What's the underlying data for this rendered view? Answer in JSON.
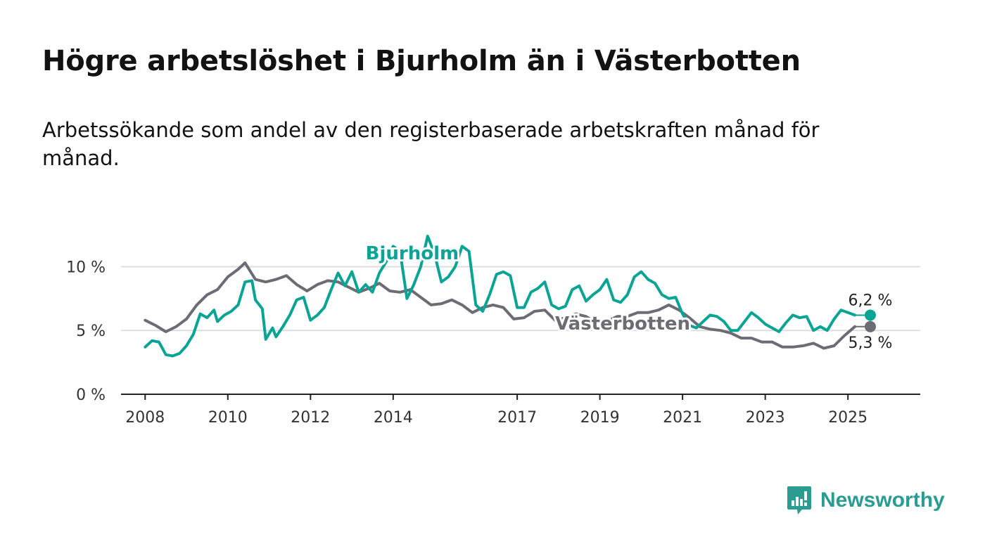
{
  "title": "Högre arbetslöshet i Bjurholm än i Västerbotten",
  "subtitle": "Arbetssökande som andel av den registerbaserade arbetskraften månad för månad.",
  "brand": {
    "name": "Newsworthy",
    "icon": "newsworthy-logo-icon",
    "color": "#2a9c92"
  },
  "colors": {
    "bjurholm": "#0aa495",
    "vasterbotten": "#6d6b73",
    "axis": "#222222",
    "grid": "#dddddd"
  },
  "chart_data": {
    "type": "line",
    "title": "Högre arbetslöshet i Bjurholm än i Västerbotten",
    "subtitle": "Arbetssökande som andel av den registerbaserade arbetskraften månad för månad.",
    "xlabel": "",
    "ylabel": "",
    "ylim": [
      0,
      13
    ],
    "y_ticks": [
      0,
      5,
      10
    ],
    "y_tick_labels": [
      "0 %",
      "5 %",
      "10 %"
    ],
    "xlim": [
      "2007-06",
      "2026-10"
    ],
    "x_ticks": [
      "2008-01",
      "2010-01",
      "2012-01",
      "2014-01",
      "2017-01",
      "2019-01",
      "2021-01",
      "2023-01",
      "2025-01"
    ],
    "x_tick_labels": [
      "2008",
      "2010",
      "2012",
      "2014",
      "2017",
      "2019",
      "2021",
      "2023",
      "2025"
    ],
    "grid": true,
    "series": [
      {
        "name": "Bjurholm",
        "color": "#0aa495",
        "end_label": "6,2 %",
        "points": [
          [
            "2008-01",
            3.7
          ],
          [
            "2008-03",
            4.2
          ],
          [
            "2008-05",
            4.1
          ],
          [
            "2008-07",
            3.1
          ],
          [
            "2008-09",
            3.0
          ],
          [
            "2008-11",
            3.2
          ],
          [
            "2009-01",
            3.8
          ],
          [
            "2009-03",
            4.7
          ],
          [
            "2009-05",
            6.3
          ],
          [
            "2009-07",
            6.0
          ],
          [
            "2009-09",
            6.6
          ],
          [
            "2009-10",
            5.7
          ],
          [
            "2009-12",
            6.2
          ],
          [
            "2010-02",
            6.5
          ],
          [
            "2010-04",
            7.0
          ],
          [
            "2010-06",
            8.8
          ],
          [
            "2010-08",
            8.9
          ],
          [
            "2010-09",
            7.4
          ],
          [
            "2010-11",
            6.7
          ],
          [
            "2010-12",
            4.3
          ],
          [
            "2011-02",
            5.2
          ],
          [
            "2011-03",
            4.5
          ],
          [
            "2011-05",
            5.3
          ],
          [
            "2011-07",
            6.2
          ],
          [
            "2011-09",
            7.4
          ],
          [
            "2011-11",
            7.6
          ],
          [
            "2012-01",
            5.8
          ],
          [
            "2012-03",
            6.2
          ],
          [
            "2012-05",
            6.8
          ],
          [
            "2012-07",
            8.2
          ],
          [
            "2012-09",
            9.5
          ],
          [
            "2012-11",
            8.5
          ],
          [
            "2013-01",
            9.6
          ],
          [
            "2013-03",
            8.0
          ],
          [
            "2013-05",
            8.6
          ],
          [
            "2013-07",
            8.0
          ],
          [
            "2013-09",
            9.5
          ],
          [
            "2013-11",
            10.4
          ],
          [
            "2014-01",
            11.6
          ],
          [
            "2014-03",
            11.2
          ],
          [
            "2014-05",
            7.5
          ],
          [
            "2014-07",
            8.6
          ],
          [
            "2014-09",
            10.0
          ],
          [
            "2014-11",
            12.4
          ],
          [
            "2015-01",
            11.0
          ],
          [
            "2015-03",
            8.8
          ],
          [
            "2015-05",
            9.2
          ],
          [
            "2015-07",
            10.0
          ],
          [
            "2015-09",
            11.6
          ],
          [
            "2015-11",
            11.2
          ],
          [
            "2016-01",
            7.0
          ],
          [
            "2016-03",
            6.5
          ],
          [
            "2016-05",
            7.8
          ],
          [
            "2016-07",
            9.4
          ],
          [
            "2016-09",
            9.6
          ],
          [
            "2016-11",
            9.3
          ],
          [
            "2017-01",
            6.8
          ],
          [
            "2017-03",
            6.8
          ],
          [
            "2017-05",
            8.0
          ],
          [
            "2017-07",
            8.3
          ],
          [
            "2017-09",
            8.8
          ],
          [
            "2017-11",
            7.0
          ],
          [
            "2018-01",
            6.7
          ],
          [
            "2018-03",
            6.9
          ],
          [
            "2018-05",
            8.2
          ],
          [
            "2018-07",
            8.5
          ],
          [
            "2018-09",
            7.3
          ],
          [
            "2018-11",
            7.8
          ],
          [
            "2019-01",
            8.2
          ],
          [
            "2019-03",
            9.0
          ],
          [
            "2019-05",
            7.4
          ],
          [
            "2019-07",
            7.2
          ],
          [
            "2019-09",
            7.8
          ],
          [
            "2019-11",
            9.2
          ],
          [
            "2020-01",
            9.6
          ],
          [
            "2020-03",
            9.0
          ],
          [
            "2020-05",
            8.7
          ],
          [
            "2020-07",
            7.8
          ],
          [
            "2020-09",
            7.5
          ],
          [
            "2020-11",
            7.6
          ],
          [
            "2021-01",
            6.3
          ],
          [
            "2021-03",
            5.4
          ],
          [
            "2021-05",
            5.2
          ],
          [
            "2021-07",
            5.7
          ],
          [
            "2021-09",
            6.2
          ],
          [
            "2021-11",
            6.1
          ],
          [
            "2022-01",
            5.7
          ],
          [
            "2022-03",
            5.0
          ],
          [
            "2022-05",
            5.0
          ],
          [
            "2022-07",
            5.7
          ],
          [
            "2022-09",
            6.4
          ],
          [
            "2022-11",
            6.0
          ],
          [
            "2023-01",
            5.5
          ],
          [
            "2023-03",
            5.2
          ],
          [
            "2023-05",
            4.9
          ],
          [
            "2023-07",
            5.6
          ],
          [
            "2023-09",
            6.2
          ],
          [
            "2023-11",
            6.0
          ],
          [
            "2024-01",
            6.1
          ],
          [
            "2024-03",
            5.0
          ],
          [
            "2024-05",
            5.3
          ],
          [
            "2024-07",
            5.0
          ],
          [
            "2024-09",
            5.9
          ],
          [
            "2024-11",
            6.6
          ],
          [
            "2025-01",
            6.4
          ],
          [
            "2025-03",
            6.2
          ]
        ]
      },
      {
        "name": "Västerbotten",
        "color": "#6d6b73",
        "end_label": "5,3 %",
        "points": [
          [
            "2008-01",
            5.8
          ],
          [
            "2008-04",
            5.4
          ],
          [
            "2008-07",
            4.9
          ],
          [
            "2008-10",
            5.3
          ],
          [
            "2009-01",
            5.9
          ],
          [
            "2009-04",
            7.0
          ],
          [
            "2009-07",
            7.8
          ],
          [
            "2009-10",
            8.2
          ],
          [
            "2010-01",
            9.2
          ],
          [
            "2010-04",
            9.8
          ],
          [
            "2010-06",
            10.3
          ],
          [
            "2010-09",
            9.0
          ],
          [
            "2010-12",
            8.8
          ],
          [
            "2011-03",
            9.0
          ],
          [
            "2011-06",
            9.3
          ],
          [
            "2011-09",
            8.6
          ],
          [
            "2011-12",
            8.1
          ],
          [
            "2012-03",
            8.6
          ],
          [
            "2012-06",
            8.9
          ],
          [
            "2012-09",
            8.8
          ],
          [
            "2012-12",
            8.4
          ],
          [
            "2013-03",
            8.0
          ],
          [
            "2013-06",
            8.3
          ],
          [
            "2013-09",
            8.7
          ],
          [
            "2013-12",
            8.1
          ],
          [
            "2014-03",
            8.0
          ],
          [
            "2014-06",
            8.2
          ],
          [
            "2014-09",
            7.6
          ],
          [
            "2014-12",
            7.0
          ],
          [
            "2015-03",
            7.1
          ],
          [
            "2015-06",
            7.4
          ],
          [
            "2015-09",
            7.0
          ],
          [
            "2015-12",
            6.4
          ],
          [
            "2016-03",
            6.8
          ],
          [
            "2016-06",
            7.0
          ],
          [
            "2016-09",
            6.8
          ],
          [
            "2016-12",
            5.9
          ],
          [
            "2017-03",
            6.0
          ],
          [
            "2017-06",
            6.5
          ],
          [
            "2017-09",
            6.6
          ],
          [
            "2017-12",
            5.8
          ],
          [
            "2018-03",
            6.0
          ],
          [
            "2018-06",
            6.3
          ],
          [
            "2018-09",
            6.1
          ],
          [
            "2018-12",
            5.6
          ],
          [
            "2019-03",
            5.7
          ],
          [
            "2019-06",
            6.1
          ],
          [
            "2019-09",
            6.1
          ],
          [
            "2019-12",
            6.4
          ],
          [
            "2020-03",
            6.4
          ],
          [
            "2020-06",
            6.6
          ],
          [
            "2020-09",
            7.0
          ],
          [
            "2020-12",
            6.6
          ],
          [
            "2021-03",
            6.0
          ],
          [
            "2021-06",
            5.3
          ],
          [
            "2021-09",
            5.1
          ],
          [
            "2021-12",
            5.0
          ],
          [
            "2022-03",
            4.8
          ],
          [
            "2022-06",
            4.4
          ],
          [
            "2022-09",
            4.4
          ],
          [
            "2022-12",
            4.1
          ],
          [
            "2023-03",
            4.1
          ],
          [
            "2023-06",
            3.7
          ],
          [
            "2023-09",
            3.7
          ],
          [
            "2023-12",
            3.8
          ],
          [
            "2024-03",
            4.0
          ],
          [
            "2024-06",
            3.6
          ],
          [
            "2024-09",
            3.8
          ],
          [
            "2024-12",
            4.6
          ],
          [
            "2025-03",
            5.3
          ]
        ]
      }
    ],
    "annotations": [
      {
        "text": "Bjurholm",
        "series": "Bjurholm"
      },
      {
        "text": "Västerbotten",
        "series": "Västerbotten"
      }
    ]
  }
}
